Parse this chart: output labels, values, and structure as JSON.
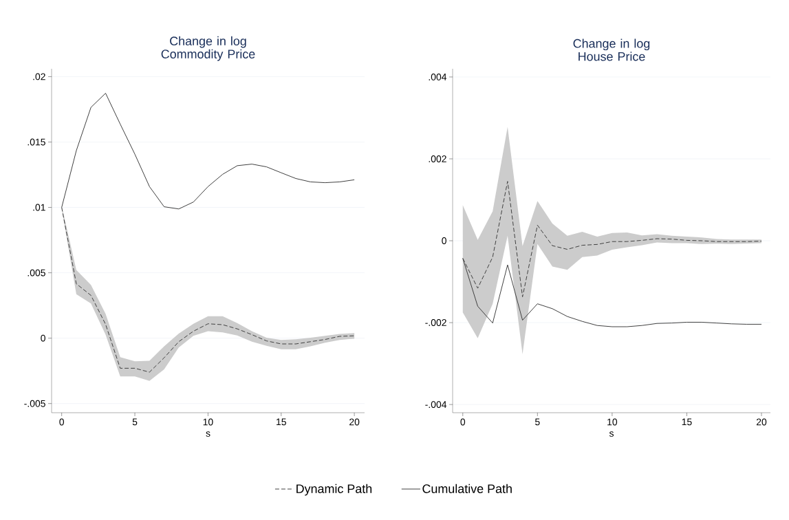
{
  "chart_data": [
    {
      "type": "line",
      "title": "Change in log Commodity Price",
      "xlabel": "s",
      "x": [
        0,
        1,
        2,
        3,
        4,
        5,
        6,
        7,
        8,
        9,
        10,
        11,
        12,
        13,
        14,
        15,
        16,
        17,
        18,
        19,
        20
      ],
      "series": [
        {
          "name": "Dynamic Path",
          "color": "#404040",
          "line_style": "dashed",
          "values": [
            0.01,
            0.00416,
            0.00327,
            0.00106,
            -0.0023,
            -0.0023,
            -0.0026,
            -0.0015,
            -0.00027,
            0.00053,
            0.0011,
            0.00103,
            0.00071,
            0.00027,
            -0.00021,
            -0.00044,
            -0.00044,
            -0.00027,
            -0.0001,
            0.00014,
            0.00018
          ],
          "lower": [
            0.0099,
            0.00336,
            0.00265,
            0.00027,
            -0.00292,
            -0.00292,
            -0.00327,
            -0.00239,
            -0.00071,
            0.00018,
            0.00053,
            0.00044,
            0.00021,
            -0.00027,
            -0.00058,
            -0.00085,
            -0.00085,
            -0.00062,
            -0.00035,
            -0.00014,
            -4e-05
          ],
          "upper": [
            0.0101,
            0.00522,
            0.00407,
            0.00186,
            -0.00145,
            -0.00177,
            -0.00173,
            -0.00062,
            0.00035,
            0.0011,
            0.00168,
            0.00168,
            0.00115,
            0.00053,
            4e-05,
            -0.00014,
            -9e-05,
            4e-05,
            0.00018,
            0.00032,
            0.00039
          ]
        },
        {
          "name": "Cumulative Path",
          "color": "#404040",
          "line_style": "solid",
          "values": [
            0.01,
            0.01434,
            0.01765,
            0.01873,
            0.01637,
            0.01407,
            0.01159,
            0.01005,
            0.00988,
            0.01041,
            0.01159,
            0.01253,
            0.01319,
            0.01331,
            0.0131,
            0.01265,
            0.01221,
            0.01195,
            0.01189,
            0.01195,
            0.01211
          ]
        }
      ],
      "xlim": [
        -0.69,
        20.7
      ],
      "xticks": [
        0,
        5,
        10,
        15,
        20
      ],
      "ylim": [
        -0.0057,
        0.0206
      ],
      "yticks": [
        {
          "value": -0.005,
          "label": "-.005"
        },
        0,
        {
          "value": 0.005,
          "label": ".005"
        },
        {
          "value": 0.01,
          "label": ".01"
        },
        {
          "value": 0.015,
          "label": ".015"
        },
        {
          "value": 0.02,
          "label": ".02"
        }
      ],
      "grid": "y",
      "legend": "bottom"
    },
    {
      "type": "line",
      "title": "Change in log House Price",
      "xlabel": "s",
      "x": [
        0,
        1,
        2,
        3,
        4,
        5,
        6,
        7,
        8,
        9,
        10,
        11,
        12,
        13,
        14,
        15,
        16,
        17,
        18,
        19,
        20
      ],
      "series": [
        {
          "color": "#404040",
          "line_style": "dashed",
          "values": [
            -0.00043,
            -0.00116,
            -0.0004,
            0.00145,
            -0.00137,
            0.00038,
            -0.00012,
            -0.00021,
            -0.00011,
            -9e-05,
            -2e-05,
            -2e-05,
            1e-05,
            5e-05,
            4e-05,
            1e-05,
            0,
            -2e-05,
            -2e-05,
            -2e-05,
            -1e-05
          ],
          "lower": [
            -0.00175,
            -0.00238,
            -0.00154,
            0.00012,
            -0.00277,
            -8e-05,
            -0.00063,
            -0.00071,
            -0.0004,
            -0.00036,
            -0.00022,
            -0.00016,
            -0.00011,
            -4e-05,
            -6e-05,
            -6e-05,
            -8e-05,
            -7e-05,
            -8e-05,
            -7e-05,
            -6e-05
          ],
          "upper": [
            0.00087,
            2e-05,
            0.00072,
            0.00278,
            -0.00013,
            0.00097,
            0.00042,
            0.00012,
            0.00022,
            0.0001,
            0.00019,
            0.0002,
            0.00013,
            0.00016,
            0.00012,
            0.0001,
            8e-05,
            4e-05,
            3e-05,
            3e-05,
            3e-05
          ]
        },
        {
          "color": "#404040",
          "line_style": "solid",
          "values": [
            -0.00043,
            -0.0016,
            -0.00201,
            -0.00059,
            -0.00194,
            -0.00154,
            -0.00166,
            -0.00185,
            -0.00197,
            -0.00207,
            -0.0021,
            -0.0021,
            -0.00207,
            -0.00202,
            -0.00201,
            -0.00199,
            -0.00199,
            -0.00201,
            -0.00203,
            -0.00204,
            -0.00204
          ]
        }
      ],
      "xlim": [
        -0.68,
        20.6
      ],
      "xticks": [
        0,
        5,
        10,
        15,
        20
      ],
      "ylim": [
        -0.0042,
        0.0042
      ],
      "yticks": [
        {
          "value": -0.004,
          "label": "-.004"
        },
        {
          "value": -0.002,
          "label": "-.002"
        },
        0,
        {
          "value": 0.002,
          "label": ".002"
        },
        {
          "value": 0.004,
          "label": ".004"
        }
      ],
      "grid": "y"
    }
  ]
}
